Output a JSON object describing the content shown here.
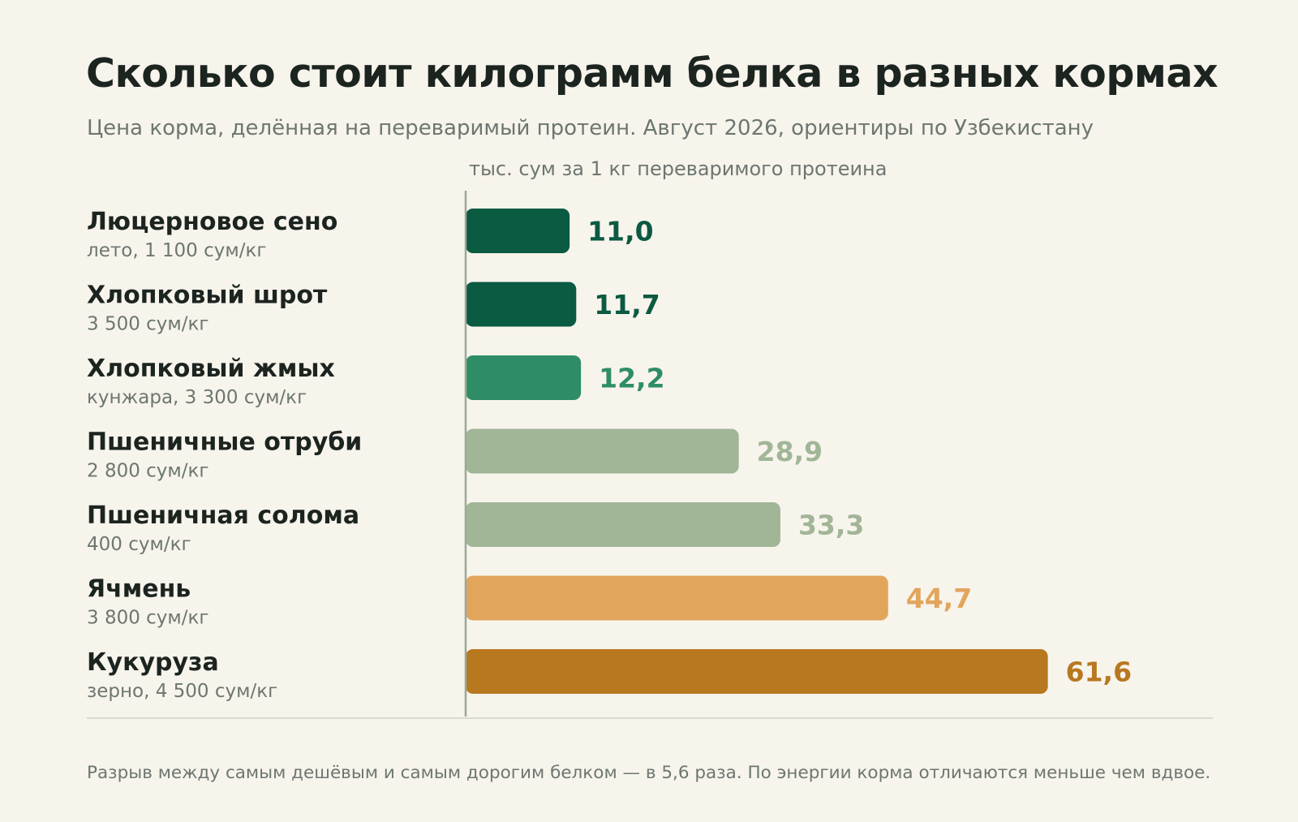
{
  "title": "Сколько стоит килограмм белка в разных кормах",
  "subtitle": "Цена корма, делённая на переваримый протеин. Август 2026, ориентиры по Узбекистану",
  "chart_data": {
    "type": "bar",
    "orientation": "horizontal",
    "value_label": "тыс. сум за 1 кг переваримого протеина",
    "categories": [
      "Люцерновое сено",
      "Хлопковый шрот",
      "Хлопковый жмых",
      "Пшеничные отруби",
      "Пшеничная солома",
      "Ячмень",
      "Кукуруза"
    ],
    "sublabels": [
      "лето, 1 100 сум/кг",
      "3 500 сум/кг",
      "кунжара, 3 300 сум/кг",
      "2 800 сум/кг",
      "400 сум/кг",
      "3 800 сум/кг",
      "зерно, 4 500 сум/кг"
    ],
    "values": [
      11.0,
      11.7,
      12.2,
      28.9,
      33.3,
      44.7,
      61.6
    ],
    "value_labels": [
      "11,0",
      "11,7",
      "12,2",
      "28,9",
      "33,3",
      "44,7",
      "61,6"
    ],
    "colors": [
      "#0b5a42",
      "#0b5a42",
      "#2e8d67",
      "#a1b597",
      "#a1b597",
      "#e2a55c",
      "#b87820"
    ],
    "xlim": [
      0,
      70
    ],
    "grid": false,
    "legend": "none"
  },
  "footnote": "Разрыв между самым дешёвым и самым дорогим белком — в 5,6 раза. По энергии корма отличаются меньше чем вдвое."
}
